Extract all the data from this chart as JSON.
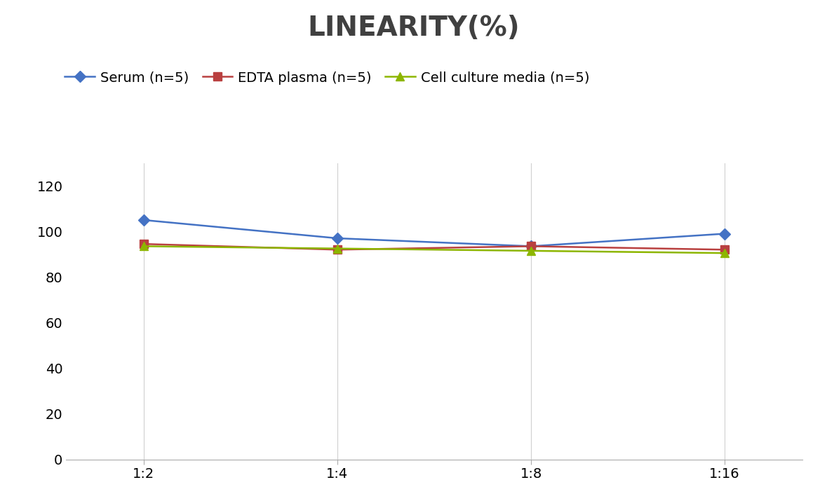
{
  "title": "LINEARITY(%)",
  "title_fontsize": 28,
  "title_fontweight": "bold",
  "x_labels": [
    "1:2",
    "1:4",
    "1:8",
    "1:16"
  ],
  "x_positions": [
    0,
    1,
    2,
    3
  ],
  "series": [
    {
      "label": "Serum (n=5)",
      "values": [
        105.0,
        97.0,
        93.5,
        99.0
      ],
      "color": "#4472C4",
      "marker": "D",
      "markersize": 8,
      "linewidth": 1.8
    },
    {
      "label": "EDTA plasma (n=5)",
      "values": [
        94.5,
        92.0,
        93.5,
        92.0
      ],
      "color": "#B94040",
      "marker": "s",
      "markersize": 8,
      "linewidth": 1.8
    },
    {
      "label": "Cell culture media (n=5)",
      "values": [
        93.5,
        92.5,
        91.5,
        90.5
      ],
      "color": "#8DB600",
      "marker": "^",
      "markersize": 8,
      "linewidth": 1.8
    }
  ],
  "ylim": [
    0,
    130
  ],
  "yticks": [
    0,
    20,
    40,
    60,
    80,
    100,
    120
  ],
  "grid_color": "#D0D0D0",
  "grid_linewidth": 0.8,
  "background_color": "#FFFFFF",
  "legend_fontsize": 14,
  "tick_fontsize": 14,
  "title_color": "#404040"
}
